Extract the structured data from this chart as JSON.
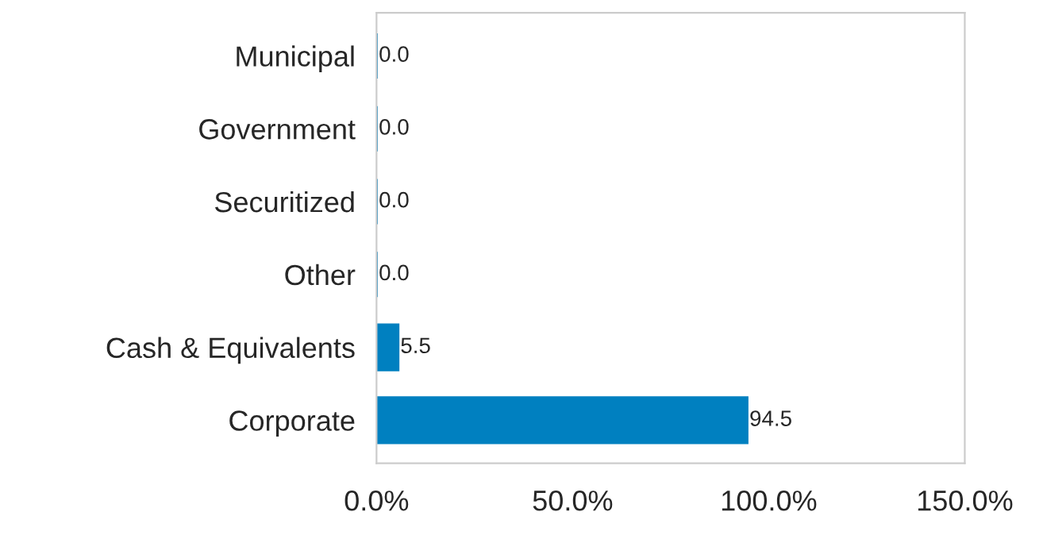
{
  "chart_data": {
    "type": "bar",
    "orientation": "horizontal",
    "categories": [
      "Municipal",
      "Government",
      "Securitized",
      "Other",
      "Cash & Equivalents",
      "Corporate"
    ],
    "values": [
      0.0,
      0.0,
      0.0,
      0.0,
      5.5,
      94.5
    ],
    "value_labels": [
      "0.0",
      "0.0",
      "0.0",
      "0.0",
      "5.5",
      "94.5"
    ],
    "color": "#0080c0",
    "xlim": [
      0,
      150
    ],
    "xticks": [
      {
        "value": 0,
        "label": "0.0%"
      },
      {
        "value": 50,
        "label": "50.0%"
      },
      {
        "value": 100,
        "label": "100.0%"
      },
      {
        "value": 150,
        "label": "150.0%"
      }
    ],
    "grid": false,
    "legend": false
  }
}
